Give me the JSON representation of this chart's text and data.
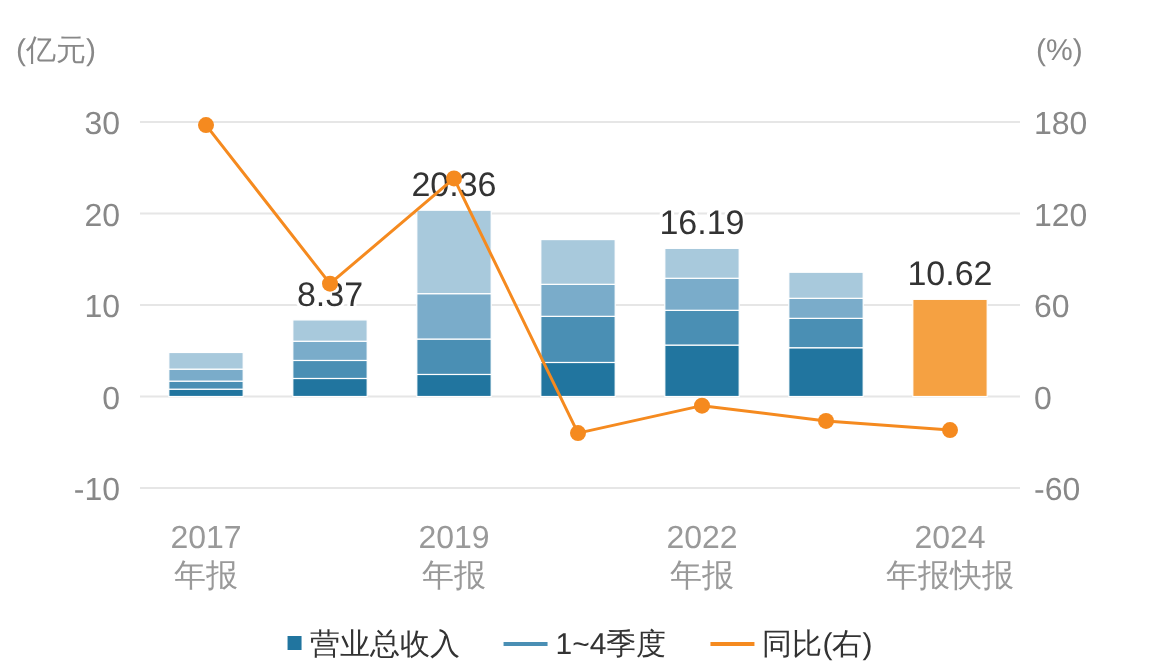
{
  "chart_data": {
    "type": "bar",
    "stacked": true,
    "ylabel": "(亿元)",
    "y2label": "(%)",
    "categories": [
      "2017\n年报",
      null,
      "2019\n年报",
      null,
      "2022\n年报",
      null,
      "2024\n年报快报"
    ],
    "series": [
      {
        "name": "营业总收入",
        "color": "#21759f",
        "colors": [
          "#21759f",
          "#21759f",
          "#21759f",
          "#21759f",
          "#21759f",
          "#21759f",
          "#f5a142"
        ],
        "values": [
          0.8,
          1.97,
          2.41,
          3.72,
          5.62,
          5.33,
          10.62
        ]
      },
      {
        "name": "1~4季度",
        "color": "#4a8fb4",
        "values": [
          0.88,
          1.97,
          3.87,
          5.04,
          3.8,
          3.21,
          null
        ]
      },
      {
        "color": "#7aacca",
        "values": [
          1.31,
          2.1,
          4.96,
          3.5,
          3.5,
          2.19,
          null
        ]
      },
      {
        "color": "#a8c9dc",
        "values": [
          1.82,
          2.33,
          9.12,
          4.89,
          3.27,
          2.85,
          null
        ]
      },
      {
        "name": "同比(右)",
        "type": "line",
        "axis": "y2",
        "color": "#f58a1f",
        "marker": "circle",
        "values": [
          178,
          74,
          143,
          -24,
          -6,
          -16,
          -22
        ]
      }
    ],
    "totals": [
      null,
      "8.37",
      "20.36",
      null,
      "16.19",
      null,
      "10.62"
    ],
    "ylim": [
      -10,
      30
    ],
    "yticks": [
      -10,
      0,
      10,
      20,
      30
    ],
    "y2lim": [
      -60,
      180
    ],
    "y2ticks": [
      -60,
      0,
      60,
      120,
      180
    ],
    "grid": "y",
    "legend": "bottom"
  }
}
